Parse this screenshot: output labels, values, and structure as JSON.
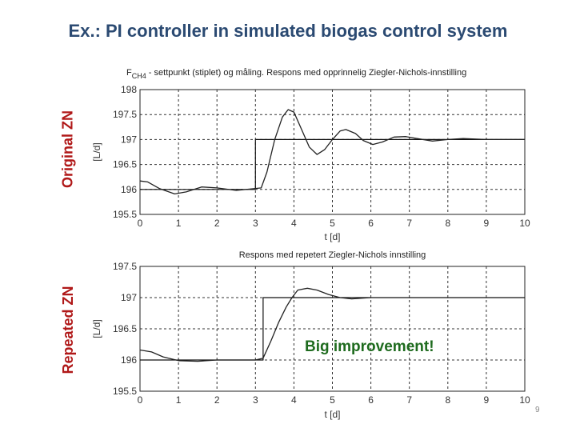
{
  "slide": {
    "title": "Ex.: PI controller in simulated biogas control system",
    "label_top": "Original ZN",
    "label_bottom": "Repeated ZN",
    "annotation": "Big improvement!",
    "page_number": "9",
    "colors": {
      "title": "#2b4a72",
      "side_labels": "#b01818",
      "annotation": "#1e6b1e"
    }
  },
  "chart_data": [
    {
      "type": "line",
      "title_main": "F",
      "title_sub": "CH4",
      "title_rest": " - settpunkt (stiplet) og måling. Respons med opprinnelig Ziegler-Nichols-innstilling",
      "xlabel": "t [d]",
      "ylabel": "[L/d]",
      "xlim": [
        0,
        10
      ],
      "ylim": [
        195.5,
        198
      ],
      "xticks": [
        "0",
        "1",
        "2",
        "3",
        "4",
        "5",
        "6",
        "7",
        "8",
        "9",
        "10"
      ],
      "yticks": [
        "195.5",
        "196",
        "196.5",
        "197",
        "197.5",
        "198"
      ],
      "grid": true,
      "series": [
        {
          "name": "setpoint",
          "x": [
            0,
            3,
            3,
            10
          ],
          "y": [
            196,
            196,
            197,
            197
          ]
        },
        {
          "name": "measurement",
          "x": [
            0,
            0.2,
            0.5,
            0.9,
            1.2,
            1.6,
            2.0,
            2.5,
            3.0,
            3.15,
            3.3,
            3.5,
            3.7,
            3.85,
            4.0,
            4.2,
            4.4,
            4.6,
            4.8,
            5.0,
            5.2,
            5.35,
            5.6,
            5.8,
            6.05,
            6.3,
            6.6,
            6.9,
            7.2,
            7.6,
            8.0,
            8.4,
            9.0,
            10.0
          ],
          "y": [
            196.17,
            196.15,
            196.02,
            195.91,
            195.95,
            196.05,
            196.03,
            195.98,
            196.02,
            196.03,
            196.35,
            197.0,
            197.45,
            197.6,
            197.55,
            197.2,
            196.85,
            196.7,
            196.8,
            197.0,
            197.17,
            197.2,
            197.12,
            196.98,
            196.9,
            196.95,
            197.05,
            197.06,
            197.02,
            196.97,
            197.0,
            197.02,
            197.0,
            197.0
          ]
        }
      ]
    },
    {
      "type": "line",
      "title": "Respons med repetert Ziegler-Nichols innstilling",
      "xlabel": "t [d]",
      "ylabel": "[L/d]",
      "xlim": [
        0,
        10
      ],
      "ylim": [
        195.5,
        197.5
      ],
      "xticks": [
        "0",
        "1",
        "2",
        "3",
        "4",
        "5",
        "6",
        "7",
        "8",
        "9",
        "10"
      ],
      "yticks": [
        "195.5",
        "196",
        "196.5",
        "197",
        "197.5"
      ],
      "grid": true,
      "series": [
        {
          "name": "setpoint",
          "x": [
            0,
            3.2,
            3.2,
            10
          ],
          "y": [
            196,
            196,
            197,
            197
          ]
        },
        {
          "name": "measurement",
          "x": [
            0,
            0.3,
            0.6,
            1.0,
            1.5,
            2.0,
            2.5,
            3.0,
            3.2,
            3.4,
            3.6,
            3.8,
            3.95,
            4.1,
            4.35,
            4.6,
            4.9,
            5.2,
            5.5,
            6.0
          ],
          "y": [
            196.16,
            196.13,
            196.05,
            195.99,
            195.98,
            196.0,
            196.0,
            196.0,
            196.03,
            196.3,
            196.6,
            196.85,
            197.0,
            197.12,
            197.15,
            197.12,
            197.05,
            197.0,
            196.98,
            197.0
          ]
        }
      ]
    }
  ]
}
